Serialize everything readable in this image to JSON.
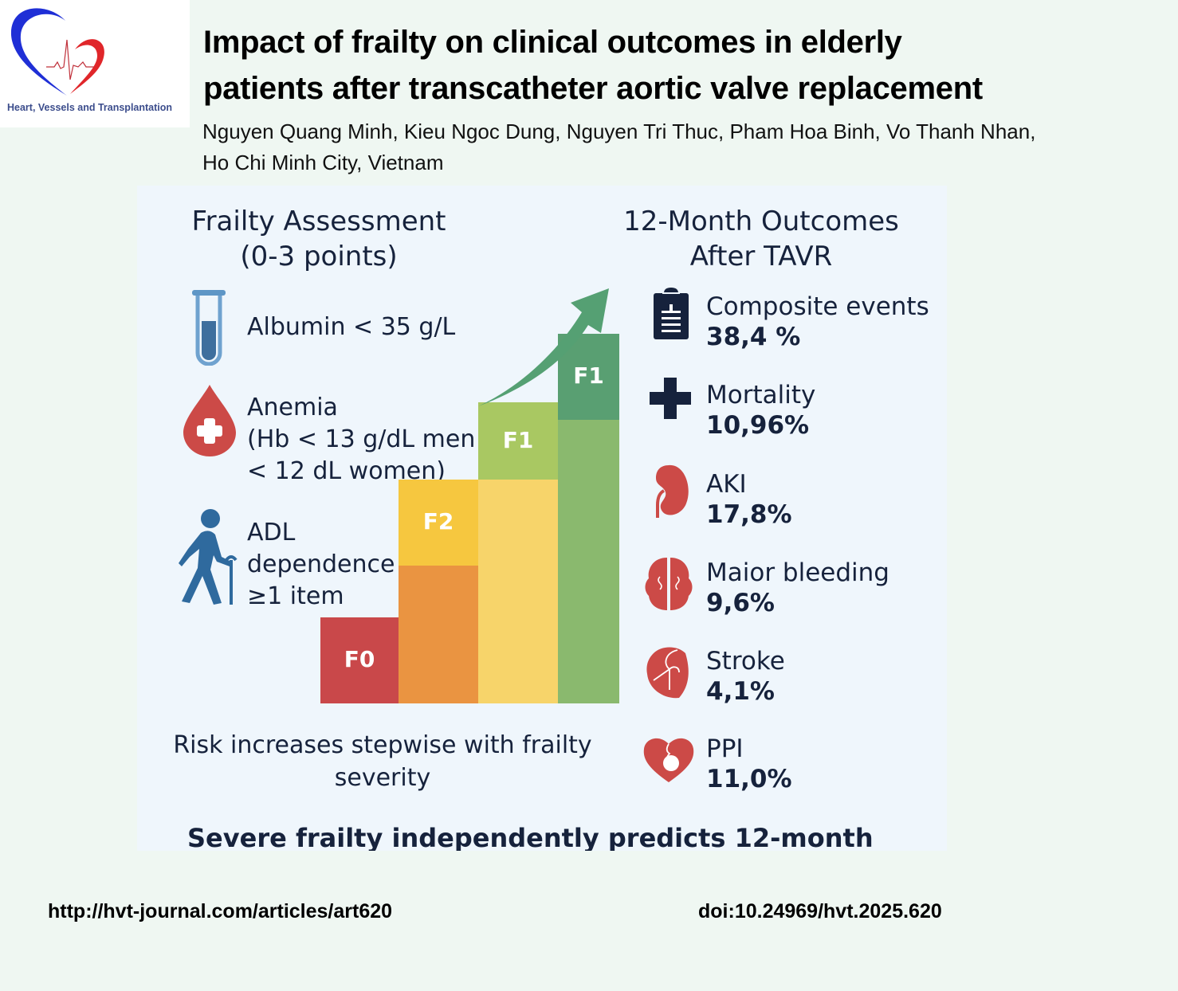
{
  "journal": {
    "name": "Heart, Vessels and Transplantation",
    "colors": {
      "blue": "#1f2fd6",
      "red": "#e0262a",
      "text": "#3c4d8c"
    }
  },
  "header": {
    "title_line1": "Impact of frailty on clinical outcomes in elderly",
    "title_line2": "patients after transcatheter aortic valve replacement",
    "authors_line1": "Nguyen Quang Minh, Kieu Ngoc Dung, Nguyen Tri Thuc, Pham Hoa Binh, Vo Thanh Nhan,",
    "authors_line2": "Ho Chi Minh City, Vietnam"
  },
  "frailty": {
    "title_line1": "Frailty Assessment",
    "title_line2": "(0-3 points)",
    "criteria": [
      {
        "icon": "test-tube-icon",
        "lines": [
          "Albumin < 35 g/L"
        ]
      },
      {
        "icon": "blood-drop-icon",
        "lines": [
          "Anemia",
          "(Hb < 13 g/dL men",
          "< 12 dL women)"
        ]
      },
      {
        "icon": "walking-elderly-icon",
        "lines": [
          "ADL",
          "dependence",
          "≥1 item"
        ]
      }
    ]
  },
  "chart_data": {
    "type": "bar",
    "title": "",
    "categories": [
      "F0",
      "F2",
      "F1",
      "F1"
    ],
    "values": [
      1,
      2.6,
      3.5,
      4.3
    ],
    "lower_segment": [
      0,
      1.6,
      2.6,
      3.3
    ],
    "colors_top": [
      "#c9484a",
      "#f6c73f",
      "#a9c862",
      "#599f72"
    ],
    "colors_lower": [
      "#c9484a",
      "#ea9441",
      "#f7d46a",
      "#8ab96e"
    ],
    "ylim": [
      0,
      4.3
    ],
    "trend": "increasing",
    "xlabel": "",
    "ylabel": "",
    "caption_line1": "Risk increases stepwise with frailty",
    "caption_line2": "severity"
  },
  "outcomes": {
    "title_line1": "12-Month Outcomes",
    "title_line2": "After TAVR",
    "items": [
      {
        "icon": "clipboard-icon",
        "label": "Composite events",
        "value": "38,4 %"
      },
      {
        "icon": "cross-icon",
        "label": "Mortality",
        "value": "10,96%"
      },
      {
        "icon": "kidney-icon",
        "label": "AKI",
        "value": "17,8%"
      },
      {
        "icon": "brain-icon",
        "label": "Maior bleeding",
        "value": "9,6%"
      },
      {
        "icon": "heart-organ-icon",
        "label": "Stroke",
        "value": "4,1%"
      },
      {
        "icon": "heart-pacemaker-icon",
        "label": "PPI",
        "value": "11,0%"
      }
    ]
  },
  "conclusion": "Severe frailty independently predicts 12-month",
  "footer": {
    "url": "http://hvt-journal.com/articles/art620",
    "doi": "doi:10.24969/hvt.2025.620"
  }
}
